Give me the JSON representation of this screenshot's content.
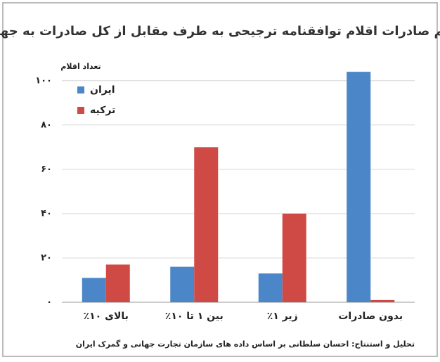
{
  "chart_data": {
    "type": "bar",
    "title": "سهم صادرات اقلام توافقنامه ترجیحی به طرف مقابل از کل صادرات به جهان",
    "y_label": "تعداد اقلام",
    "source": "تحلیل و استنتاج: احسان سلطانی بر اساس داده های سازمان تجارت جهانی و گمرک ایران",
    "categories": [
      "بالای ۱۰٪",
      "بین ۱ تا ۱۰٪",
      "زیر ۱٪",
      "بدون صادرات"
    ],
    "series": [
      {
        "name": "ایران",
        "color": "#4a86c8",
        "values": [
          11,
          16,
          13,
          104
        ]
      },
      {
        "name": "ترکیه",
        "color": "#d04a45",
        "values": [
          17,
          70,
          40,
          1
        ]
      }
    ],
    "ylim": [
      0,
      105
    ],
    "yticks": [
      {
        "value": 0,
        "label": "۰"
      },
      {
        "value": 20,
        "label": "۲۰"
      },
      {
        "value": 40,
        "label": "۴۰"
      },
      {
        "value": 60,
        "label": "۶۰"
      },
      {
        "value": 80,
        "label": "۸۰"
      },
      {
        "value": 100,
        "label": "۱۰۰"
      }
    ],
    "grid": true,
    "legend": "top-left"
  }
}
